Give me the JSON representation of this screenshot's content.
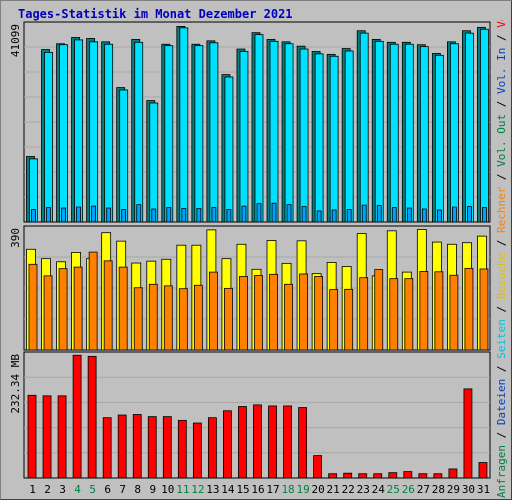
{
  "title": "Tages-Statistik im Monat Dezember 2021",
  "colors": {
    "background": "#c0c0c0",
    "plot_background": "#c0c0c0",
    "grid": "#a8a8a8",
    "axis": "#000000",
    "hits": "#008080",
    "files": "#00e0ff",
    "pages": "#00a0ff",
    "visits": "#ffff00",
    "hosts": "#ff8000",
    "volume": "#ff0000",
    "weekend_label": "#008040",
    "weekday_label": "#000000"
  },
  "legend_right": [
    {
      "text": "Anfragen",
      "color": "#008040"
    },
    {
      "text": " / ",
      "color": "#000000"
    },
    {
      "text": "Dateien",
      "color": "#0040c0"
    },
    {
      "text": " / ",
      "color": "#000000"
    },
    {
      "text": "Seiten",
      "color": "#00c0e0"
    },
    {
      "text": " / ",
      "color": "#000000"
    },
    {
      "text": "Besuche",
      "color": "#e0c000"
    },
    {
      "text": " / ",
      "color": "#000000"
    },
    {
      "text": "Rechner",
      "color": "#ff8000"
    },
    {
      "text": " / ",
      "color": "#000000"
    },
    {
      "text": "Vol. Out",
      "color": "#008040"
    },
    {
      "text": " / ",
      "color": "#000000"
    },
    {
      "text": "Vol. In",
      "color": "#0040c0"
    },
    {
      "text": " / ",
      "color": "#000000"
    },
    {
      "text": "Volumen",
      "color": "#ff0000"
    }
  ],
  "chart_data": [
    {
      "type": "bar",
      "name": "hits-files-pages",
      "ymax_label": "41099",
      "ylim": [
        0,
        41099
      ],
      "categories": [
        "1",
        "2",
        "3",
        "4",
        "5",
        "6",
        "7",
        "8",
        "9",
        "10",
        "11",
        "12",
        "13",
        "14",
        "15",
        "16",
        "17",
        "18",
        "19",
        "20",
        "21",
        "22",
        "23",
        "24",
        "25",
        "26",
        "27",
        "28",
        "29",
        "30",
        "31"
      ],
      "weekend_days": [
        "4",
        "5",
        "11",
        "12",
        "18",
        "19",
        "25",
        "26"
      ],
      "series": [
        {
          "name": "Anfragen",
          "values": [
            13600,
            35800,
            37000,
            38300,
            38100,
            37400,
            27900,
            37900,
            25200,
            36900,
            40600,
            36900,
            37600,
            30600,
            35900,
            39300,
            37900,
            37400,
            36500,
            35400,
            34800,
            36000,
            39700,
            37900,
            37300,
            37300,
            36800,
            35000,
            37400,
            39700,
            40400
          ]
        },
        {
          "name": "Dateien",
          "values": [
            13100,
            35200,
            36800,
            37800,
            37400,
            36900,
            27400,
            37300,
            24700,
            36600,
            40300,
            36600,
            37200,
            30100,
            35400,
            38900,
            37500,
            37000,
            35900,
            34900,
            34400,
            35500,
            39200,
            37500,
            36900,
            36900,
            36400,
            34600,
            37000,
            39200,
            40000
          ]
        },
        {
          "name": "Seiten",
          "values": [
            2600,
            3000,
            2900,
            3100,
            3300,
            2900,
            2600,
            3600,
            2700,
            3000,
            2800,
            2800,
            3000,
            2600,
            3300,
            3800,
            3900,
            3600,
            3200,
            2300,
            2500,
            2600,
            3500,
            3400,
            3000,
            2900,
            2700,
            2500,
            3100,
            3200,
            3000
          ]
        }
      ]
    },
    {
      "type": "bar",
      "name": "visits-hosts",
      "ymax_label": "390",
      "ylim": [
        0,
        390
      ],
      "categories": [
        "1",
        "2",
        "3",
        "4",
        "5",
        "6",
        "7",
        "8",
        "9",
        "10",
        "11",
        "12",
        "13",
        "14",
        "15",
        "16",
        "17",
        "18",
        "19",
        "20",
        "21",
        "22",
        "23",
        "24",
        "25",
        "26",
        "27",
        "28",
        "29",
        "30",
        "31"
      ],
      "series": [
        {
          "name": "Besuche",
          "values": [
            322,
            292,
            282,
            312,
            292,
            375,
            348,
            278,
            284,
            290,
            335,
            335,
            384,
            292,
            338,
            258,
            350,
            277,
            349,
            244,
            280,
            267,
            372,
            237,
            381,
            249,
            385,
            345,
            338,
            343,
            364
          ]
        },
        {
          "name": "Rechner",
          "values": [
            274,
            237,
            260,
            265,
            313,
            285,
            265,
            199,
            210,
            205,
            196,
            207,
            249,
            197,
            235,
            238,
            242,
            210,
            243,
            235,
            193,
            194,
            231,
            257,
            228,
            228,
            251,
            250,
            239,
            261,
            259
          ]
        }
      ]
    },
    {
      "type": "bar",
      "name": "volume",
      "ymax_label": "232.34 MB",
      "ylim": [
        0,
        232.34
      ],
      "categories": [
        "1",
        "2",
        "3",
        "4",
        "5",
        "6",
        "7",
        "8",
        "9",
        "10",
        "11",
        "12",
        "13",
        "14",
        "15",
        "16",
        "17",
        "18",
        "19",
        "20",
        "21",
        "22",
        "23",
        "24",
        "25",
        "26",
        "27",
        "28",
        "29",
        "30",
        "31"
      ],
      "series": [
        {
          "name": "Volumen",
          "values": [
            155,
            154,
            154,
            230,
            228,
            113,
            118,
            119,
            115,
            115,
            108,
            103,
            113,
            126,
            134,
            137,
            135,
            135,
            132,
            42,
            8,
            9,
            8,
            8,
            10,
            12,
            8,
            8,
            17,
            167,
            29
          ]
        }
      ]
    }
  ]
}
